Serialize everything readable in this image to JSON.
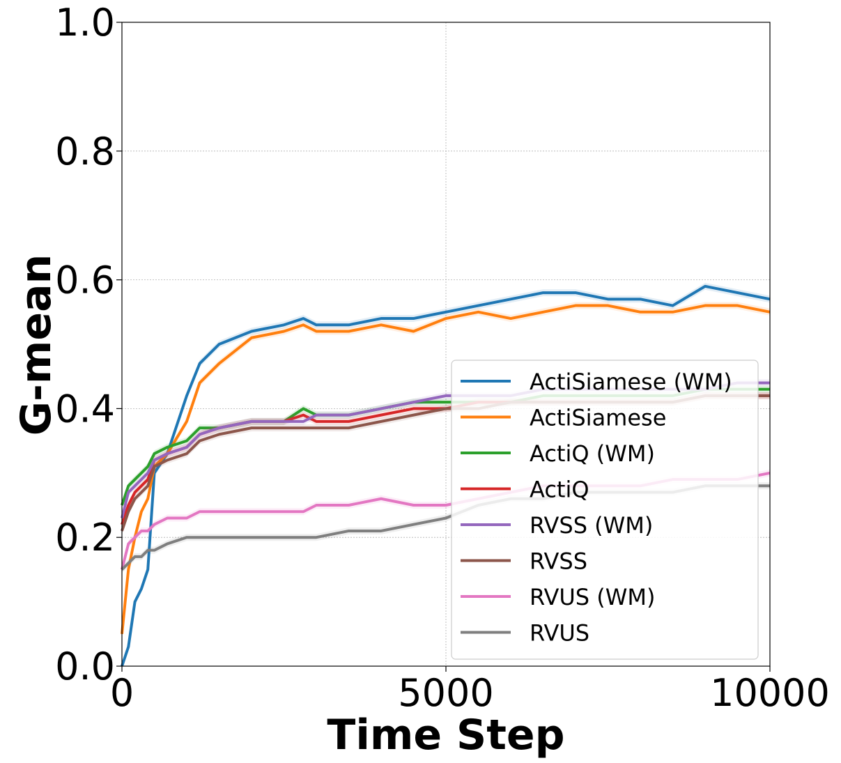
{
  "chart_data": {
    "type": "line",
    "title": "",
    "xlabel": "Time Step",
    "ylabel": "G-mean",
    "xlim": [
      0,
      10000
    ],
    "ylim": [
      0,
      1.0
    ],
    "xticks": [
      "0",
      "5000",
      "10000"
    ],
    "yticks": [
      "0.0",
      "0.2",
      "0.4",
      "0.6",
      "0.8",
      "1.0"
    ],
    "grid": true,
    "legend_position": "lower-right",
    "x": [
      0,
      100,
      200,
      300,
      400,
      500,
      700,
      1000,
      1200,
      1500,
      2000,
      2500,
      2800,
      3000,
      3500,
      4000,
      4500,
      5000,
      5500,
      6000,
      6500,
      7000,
      7500,
      8000,
      8500,
      9000,
      9500,
      10000
    ],
    "series": [
      {
        "name": "ActiSiamese (WM)",
        "color": "#1f77b4",
        "values": [
          0.0,
          0.03,
          0.1,
          0.12,
          0.15,
          0.3,
          0.33,
          0.42,
          0.47,
          0.5,
          0.52,
          0.53,
          0.54,
          0.53,
          0.53,
          0.54,
          0.54,
          0.55,
          0.56,
          0.57,
          0.58,
          0.58,
          0.57,
          0.57,
          0.56,
          0.59,
          0.58,
          0.57
        ]
      },
      {
        "name": "ActiSiamese",
        "color": "#ff7f0e",
        "values": [
          0.05,
          0.15,
          0.2,
          0.24,
          0.26,
          0.31,
          0.33,
          0.38,
          0.44,
          0.47,
          0.51,
          0.52,
          0.53,
          0.52,
          0.52,
          0.53,
          0.52,
          0.54,
          0.55,
          0.54,
          0.55,
          0.56,
          0.56,
          0.55,
          0.55,
          0.56,
          0.56,
          0.55
        ]
      },
      {
        "name": "ActiQ (WM)",
        "color": "#2ca02c",
        "values": [
          0.25,
          0.28,
          0.29,
          0.3,
          0.31,
          0.33,
          0.34,
          0.35,
          0.37,
          0.37,
          0.38,
          0.38,
          0.4,
          0.39,
          0.39,
          0.4,
          0.41,
          0.41,
          0.41,
          0.41,
          0.42,
          0.42,
          0.42,
          0.42,
          0.42,
          0.43,
          0.43,
          0.43
        ]
      },
      {
        "name": "ActiQ",
        "color": "#d62728",
        "values": [
          0.22,
          0.25,
          0.27,
          0.28,
          0.29,
          0.32,
          0.33,
          0.34,
          0.36,
          0.37,
          0.38,
          0.38,
          0.39,
          0.38,
          0.38,
          0.39,
          0.4,
          0.4,
          0.41,
          0.41,
          0.41,
          0.41,
          0.41,
          0.41,
          0.41,
          0.42,
          0.42,
          0.42
        ]
      },
      {
        "name": "RVSS (WM)",
        "color": "#9467bd",
        "values": [
          0.23,
          0.27,
          0.28,
          0.29,
          0.3,
          0.32,
          0.33,
          0.34,
          0.36,
          0.37,
          0.38,
          0.38,
          0.38,
          0.39,
          0.39,
          0.4,
          0.41,
          0.42,
          0.42,
          0.42,
          0.43,
          0.43,
          0.43,
          0.43,
          0.43,
          0.43,
          0.44,
          0.44
        ]
      },
      {
        "name": "RVSS",
        "color": "#8c564b",
        "values": [
          0.21,
          0.24,
          0.26,
          0.27,
          0.28,
          0.31,
          0.32,
          0.33,
          0.35,
          0.36,
          0.37,
          0.37,
          0.37,
          0.37,
          0.37,
          0.38,
          0.39,
          0.4,
          0.4,
          0.41,
          0.41,
          0.41,
          0.41,
          0.41,
          0.41,
          0.42,
          0.42,
          0.42
        ]
      },
      {
        "name": "RVUS (WM)",
        "color": "#e377c2",
        "values": [
          0.15,
          0.19,
          0.2,
          0.21,
          0.21,
          0.22,
          0.23,
          0.23,
          0.24,
          0.24,
          0.24,
          0.24,
          0.24,
          0.25,
          0.25,
          0.26,
          0.25,
          0.25,
          0.26,
          0.27,
          0.28,
          0.28,
          0.28,
          0.28,
          0.29,
          0.29,
          0.29,
          0.3
        ]
      },
      {
        "name": "RVUS",
        "color": "#7f7f7f",
        "values": [
          0.15,
          0.16,
          0.17,
          0.17,
          0.18,
          0.18,
          0.19,
          0.2,
          0.2,
          0.2,
          0.2,
          0.2,
          0.2,
          0.2,
          0.21,
          0.21,
          0.22,
          0.23,
          0.25,
          0.26,
          0.26,
          0.27,
          0.27,
          0.27,
          0.27,
          0.28,
          0.28,
          0.28
        ]
      }
    ]
  }
}
